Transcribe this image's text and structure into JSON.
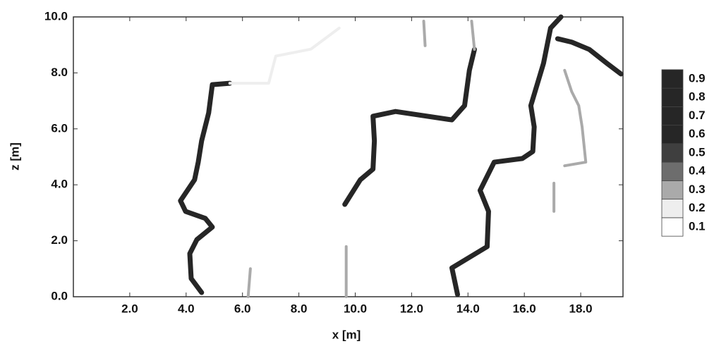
{
  "chart_data": {
    "type": "contour",
    "x_label": "x [m]",
    "y_label": "z [m]",
    "xlim": [
      0,
      19.5
    ],
    "ylim": [
      0,
      10
    ],
    "xticks": [
      {
        "value": 2,
        "label": "2.0"
      },
      {
        "value": 4,
        "label": "4.0"
      },
      {
        "value": 6,
        "label": "6.0"
      },
      {
        "value": 8,
        "label": "8.0"
      },
      {
        "value": 10,
        "label": "10.0"
      },
      {
        "value": 12,
        "label": "12.0"
      },
      {
        "value": 14,
        "label": "14.0"
      },
      {
        "value": 16,
        "label": "16.0"
      },
      {
        "value": 18,
        "label": "18.0"
      }
    ],
    "yticks": [
      {
        "value": 0,
        "label": "0.0"
      },
      {
        "value": 2,
        "label": "2.0"
      },
      {
        "value": 4,
        "label": "4.0"
      },
      {
        "value": 6,
        "label": "6.0"
      },
      {
        "value": 8,
        "label": "8.0"
      },
      {
        "value": 10,
        "label": "10.0"
      }
    ],
    "levels": [
      0.1,
      0.2,
      0.3,
      0.4,
      0.5,
      0.6,
      0.7,
      0.8,
      0.9
    ],
    "level_colors": [
      "#ffffff",
      "#eeeeee",
      "#aaaaaa",
      "#6d6d6d",
      "#3f3f3f",
      "#262626",
      "#262626",
      "#262626",
      "#262626"
    ],
    "curves": [
      {
        "value": 0.9,
        "x": [
          4.55,
          4.18,
          4.13,
          4.38,
          4.93,
          4.68,
          3.98,
          3.8,
          4.3,
          4.43,
          4.55,
          4.8,
          4.93,
          5.55
        ],
        "y": [
          0.15,
          0.65,
          1.54,
          2.04,
          2.49,
          2.8,
          3.05,
          3.43,
          4.18,
          4.81,
          5.57,
          6.57,
          7.58,
          7.63
        ]
      },
      {
        "value": 0.9,
        "x": [
          9.63,
          10.18,
          10.63,
          10.68,
          10.63,
          11.43,
          13.43,
          13.88,
          14.05,
          14.23
        ],
        "y": [
          3.3,
          4.18,
          4.56,
          5.57,
          6.45,
          6.62,
          6.32,
          6.83,
          8.09,
          8.84
        ]
      },
      {
        "value": 0.9,
        "x": [
          13.63,
          13.43,
          14.68,
          14.73,
          14.43,
          14.93,
          15.93,
          16.3,
          16.35,
          16.23,
          16.68,
          16.93,
          17.3
        ],
        "y": [
          0.08,
          1.03,
          1.79,
          3.05,
          3.8,
          4.81,
          4.94,
          5.19,
          6.07,
          6.83,
          8.34,
          9.6,
          10.0
        ]
      },
      {
        "value": 0.9,
        "x": [
          17.18,
          17.68,
          18.3,
          18.93,
          19.43
        ],
        "y": [
          9.22,
          9.1,
          8.84,
          8.34,
          7.96
        ]
      },
      {
        "value": 0.3,
        "x": [
          17.43,
          17.68,
          17.93,
          18.05,
          18.18,
          17.43
        ],
        "y": [
          8.09,
          7.33,
          6.83,
          6.07,
          4.81,
          4.68
        ]
      },
      {
        "value": 0.3,
        "x": [
          9.68,
          9.68
        ],
        "y": [
          0.0,
          1.79
        ]
      },
      {
        "value": 0.3,
        "x": [
          6.2,
          6.28
        ],
        "y": [
          0.0,
          1.0
        ]
      },
      {
        "value": 0.3,
        "x": [
          12.43,
          12.48
        ],
        "y": [
          9.85,
          8.97
        ]
      },
      {
        "value": 0.3,
        "x": [
          17.05,
          17.05
        ],
        "y": [
          4.06,
          3.05
        ]
      },
      {
        "value": 0.3,
        "x": [
          14.23,
          14.13
        ],
        "y": [
          8.84,
          9.85
        ]
      },
      {
        "value": 0.2,
        "x": [
          5.55,
          6.93,
          7.18,
          8.43,
          9.43
        ],
        "y": [
          7.63,
          7.63,
          8.6,
          8.85,
          9.6
        ]
      }
    ]
  }
}
